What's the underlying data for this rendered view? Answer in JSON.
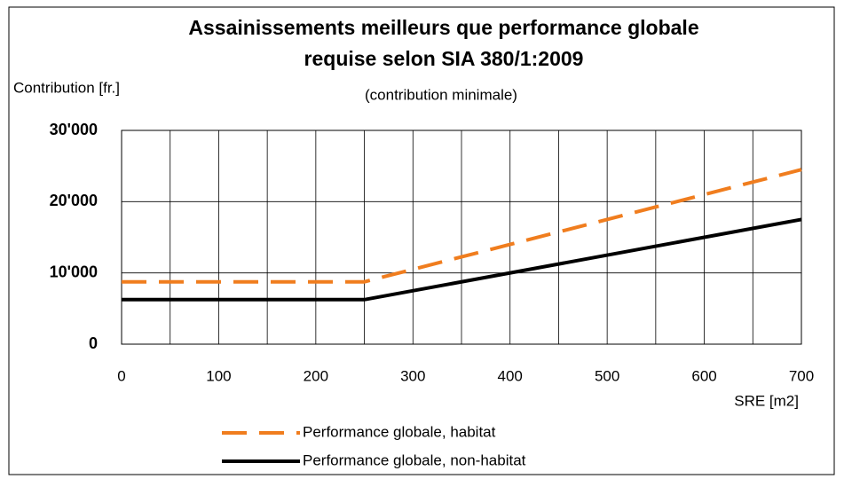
{
  "chart_data": {
    "type": "line",
    "title": "Assainissements meilleurs que performance globale",
    "title_line2": "requise selon SIA 380/1:2009",
    "subtitle": "(contribution minimale)",
    "y_label": "Contribution [fr.]",
    "x_label": "SRE [m2]",
    "x": [
      0,
      250,
      700
    ],
    "series": [
      {
        "name": "Performance globale, habitat",
        "color": "#f07d1e",
        "dashed": true,
        "values": [
          8750,
          8750,
          24500
        ]
      },
      {
        "name": "Performance globale, non-habitat",
        "color": "#000000",
        "dashed": false,
        "values": [
          6250,
          6250,
          17500
        ]
      }
    ],
    "xlim": [
      0,
      700
    ],
    "xticks": [
      0,
      100,
      200,
      300,
      400,
      500,
      600,
      700
    ],
    "x_minor_ticks": [
      50,
      150,
      250,
      350,
      450,
      550,
      650
    ],
    "ylim": [
      0,
      30000
    ],
    "yticks": [
      0,
      {
        "value": 10000,
        "label": "10'000"
      },
      {
        "value": 20000,
        "label": "20'000"
      },
      {
        "value": 30000,
        "label": "30'000"
      }
    ],
    "grid": true
  }
}
